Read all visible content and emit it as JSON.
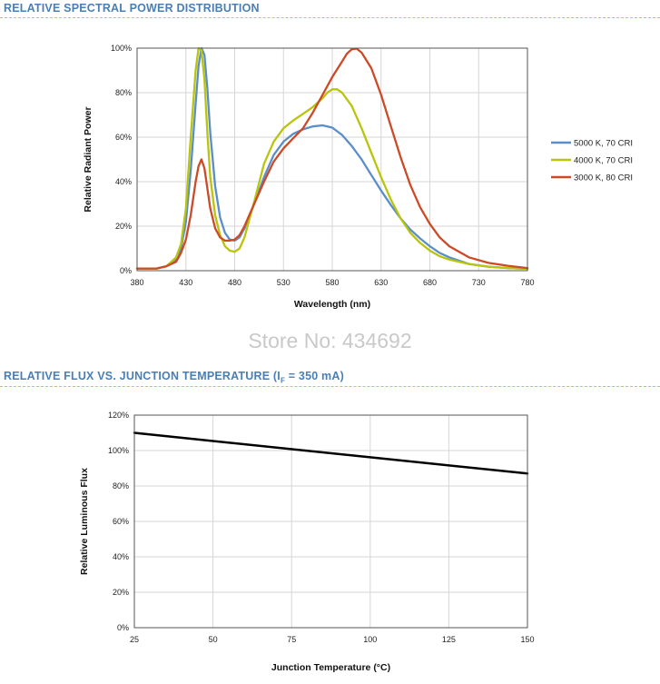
{
  "section1_title": "RELATIVE SPECTRAL POWER DISTRIBUTION",
  "section2": {
    "title_main": "RELATIVE FLUX VS. JUNCTION TEMPERATURE (I",
    "title_sub": "F",
    "title_tail": " = 350 mA)"
  },
  "watermark": "Store No: 434692",
  "colors": {
    "accent_title": "#4a7fb5",
    "rule": "#f2c200",
    "blue": "#5b8ec9",
    "green": "#b9c40c",
    "red": "#cc4a26",
    "grid": "#d6d6d6",
    "black": "#000000"
  },
  "chart_data": [
    {
      "type": "line",
      "xlabel": "Wavelength (nm)",
      "ylabel": "Relative Radiant Power",
      "xlim": [
        380,
        780
      ],
      "ylim": [
        0,
        100
      ],
      "xticks": [
        380,
        430,
        480,
        530,
        580,
        630,
        680,
        730,
        780
      ],
      "xtick_labels": [
        "380",
        "430",
        "480",
        "530",
        "580",
        "630",
        "680",
        "730",
        "780"
      ],
      "yticks": [
        0,
        20,
        40,
        60,
        80,
        100
      ],
      "ytick_labels": [
        "0%",
        "20%",
        "40%",
        "60%",
        "80%",
        "100%"
      ],
      "grid": true,
      "legend_position": "right",
      "series": [
        {
          "name": "5000 K, 70 CRI",
          "color": "#5b8ec9",
          "x": [
            380,
            400,
            410,
            420,
            425,
            430,
            435,
            440,
            443,
            446,
            449,
            452,
            455,
            460,
            465,
            470,
            475,
            480,
            485,
            490,
            500,
            510,
            520,
            530,
            540,
            550,
            560,
            570,
            580,
            590,
            600,
            610,
            620,
            630,
            640,
            650,
            660,
            670,
            680,
            690,
            700,
            720,
            740,
            760,
            780
          ],
          "y": [
            1,
            1,
            2,
            5,
            10,
            22,
            45,
            75,
            92,
            100,
            97,
            82,
            62,
            38,
            24,
            17,
            14,
            13.5,
            15,
            19,
            30,
            42,
            52,
            58,
            61.5,
            63.5,
            64.8,
            65.3,
            64.3,
            61,
            56,
            50,
            43,
            36,
            29.5,
            23.5,
            18.5,
            14.5,
            11,
            8,
            6,
            3,
            1.8,
            1.2,
            0.8
          ]
        },
        {
          "name": "4000 K, 70 CRI",
          "color": "#b9c40c",
          "x": [
            380,
            400,
            410,
            420,
            425,
            430,
            435,
            440,
            443,
            446,
            449,
            452,
            455,
            460,
            465,
            470,
            475,
            480,
            485,
            490,
            500,
            510,
            520,
            530,
            540,
            550,
            560,
            570,
            575,
            580,
            585,
            590,
            600,
            610,
            620,
            630,
            640,
            650,
            660,
            670,
            680,
            690,
            700,
            720,
            740,
            760,
            780
          ],
          "y": [
            1,
            1,
            2,
            6,
            12,
            28,
            60,
            90,
            100,
            99,
            86,
            62,
            42,
            25,
            16,
            11,
            9,
            8.5,
            10,
            15,
            31,
            48,
            58,
            64,
            67.5,
            70.5,
            73.5,
            77.5,
            80,
            81.5,
            81.5,
            80,
            74,
            64,
            53,
            42,
            32,
            23.5,
            17,
            12.5,
            9,
            6.5,
            5,
            3,
            1.8,
            1.2,
            0.8
          ]
        },
        {
          "name": "3000 K, 80 CRI",
          "color": "#cc4a26",
          "x": [
            380,
            400,
            410,
            420,
            425,
            430,
            435,
            440,
            443,
            446,
            449,
            452,
            455,
            460,
            465,
            470,
            475,
            480,
            485,
            490,
            500,
            510,
            520,
            530,
            540,
            550,
            560,
            570,
            580,
            590,
            595,
            600,
            605,
            610,
            620,
            630,
            640,
            650,
            660,
            670,
            680,
            690,
            700,
            720,
            740,
            760,
            780
          ],
          "y": [
            1,
            1,
            2,
            4,
            8,
            14,
            25,
            40,
            47,
            50,
            46,
            37,
            28,
            19,
            15,
            13.5,
            13.5,
            14,
            16,
            20,
            30,
            40,
            49,
            55,
            59.5,
            64,
            71,
            79,
            87,
            94,
            97.5,
            99.5,
            99.8,
            98,
            91,
            79,
            65,
            51,
            38.5,
            28.5,
            21,
            15,
            11,
            6,
            3.5,
            2.2,
            1.2
          ]
        }
      ]
    },
    {
      "type": "line",
      "xlabel": "Junction Temperature (°C)",
      "ylabel": "Relative Luminous Flux",
      "xlim": [
        25,
        150
      ],
      "ylim": [
        0,
        120
      ],
      "xticks": [
        25,
        50,
        75,
        100,
        125,
        150
      ],
      "xtick_labels": [
        "25",
        "50",
        "75",
        "100",
        "125",
        "150"
      ],
      "yticks": [
        0,
        20,
        40,
        60,
        80,
        100,
        120
      ],
      "ytick_labels": [
        "0%",
        "20%",
        "40%",
        "60%",
        "80%",
        "100%",
        "120%"
      ],
      "grid": true,
      "legend_position": "none",
      "series": [
        {
          "color": "#000000",
          "x": [
            25,
            150
          ],
          "y": [
            110,
            87
          ]
        }
      ]
    }
  ]
}
